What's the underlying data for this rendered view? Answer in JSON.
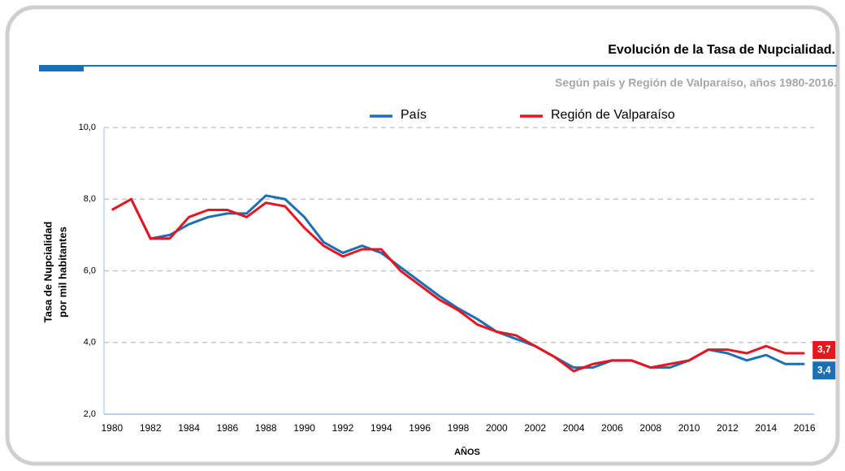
{
  "chart_data": {
    "type": "line",
    "title": "Evolución de la Tasa de Nupcialidad.",
    "subtitle": "Según país y Región de Valparaíso, años 1980-2016.",
    "xlabel": "AÑOS",
    "ylabel": [
      "Tasa de Nupcialidad",
      "por mil habitantes"
    ],
    "x": [
      1980,
      1981,
      1982,
      1983,
      1984,
      1985,
      1986,
      1987,
      1988,
      1989,
      1990,
      1991,
      1992,
      1993,
      1994,
      1995,
      1996,
      1997,
      1998,
      1999,
      2000,
      2001,
      2002,
      2003,
      2004,
      2005,
      2006,
      2007,
      2008,
      2009,
      2010,
      2011,
      2012,
      2013,
      2014,
      2015,
      2016
    ],
    "series": [
      {
        "name": "País",
        "color": "#1b6fb5",
        "values": [
          7.7,
          8.0,
          6.9,
          7.0,
          7.3,
          7.5,
          7.6,
          7.6,
          8.1,
          8.0,
          7.5,
          6.8,
          6.5,
          6.7,
          6.5,
          6.1,
          5.7,
          5.3,
          4.95,
          4.65,
          4.3,
          4.1,
          3.9,
          3.6,
          3.3,
          3.3,
          3.5,
          3.5,
          3.3,
          3.3,
          3.5,
          3.8,
          3.7,
          3.5,
          3.65,
          3.4,
          3.4
        ],
        "value_labels": [
          null,
          null,
          null,
          null,
          null,
          null,
          null,
          null,
          null,
          null,
          null,
          null,
          null,
          null,
          null,
          null,
          null,
          null,
          null,
          null,
          null,
          null,
          null,
          null,
          null,
          null,
          null,
          null,
          null,
          null,
          null,
          null,
          null,
          null,
          null,
          null,
          "3,4"
        ]
      },
      {
        "name": "Región de Valparaíso",
        "color": "#e8141e",
        "values": [
          7.7,
          8.0,
          6.9,
          6.9,
          7.5,
          7.7,
          7.7,
          7.5,
          7.9,
          7.8,
          7.2,
          6.7,
          6.4,
          6.6,
          6.6,
          6.0,
          5.6,
          5.2,
          4.9,
          4.5,
          4.3,
          4.2,
          3.9,
          3.6,
          3.2,
          3.4,
          3.5,
          3.5,
          3.3,
          3.4,
          3.5,
          3.8,
          3.8,
          3.7,
          3.9,
          3.7,
          3.7
        ],
        "value_labels": [
          null,
          null,
          null,
          null,
          null,
          null,
          null,
          null,
          null,
          null,
          null,
          null,
          null,
          null,
          null,
          null,
          null,
          null,
          null,
          null,
          null,
          null,
          null,
          null,
          null,
          null,
          null,
          null,
          null,
          null,
          null,
          null,
          null,
          null,
          null,
          null,
          "3,7"
        ]
      }
    ],
    "xlim": [
      1979.5,
      2016.5
    ],
    "xticks": [
      1980,
      1982,
      1984,
      1986,
      1988,
      1990,
      1992,
      1994,
      1996,
      1998,
      2000,
      2002,
      2004,
      2006,
      2008,
      2010,
      2012,
      2014,
      2016
    ],
    "ylim": [
      2,
      10
    ],
    "yticks": [
      {
        "value": 2,
        "label": "2,0"
      },
      {
        "value": 4,
        "label": "4,0"
      },
      {
        "value": 6,
        "label": "6,0"
      },
      {
        "value": 8,
        "label": "8,0"
      },
      {
        "value": 10,
        "label": "10,0"
      }
    ],
    "grid": true,
    "legend": "top"
  }
}
